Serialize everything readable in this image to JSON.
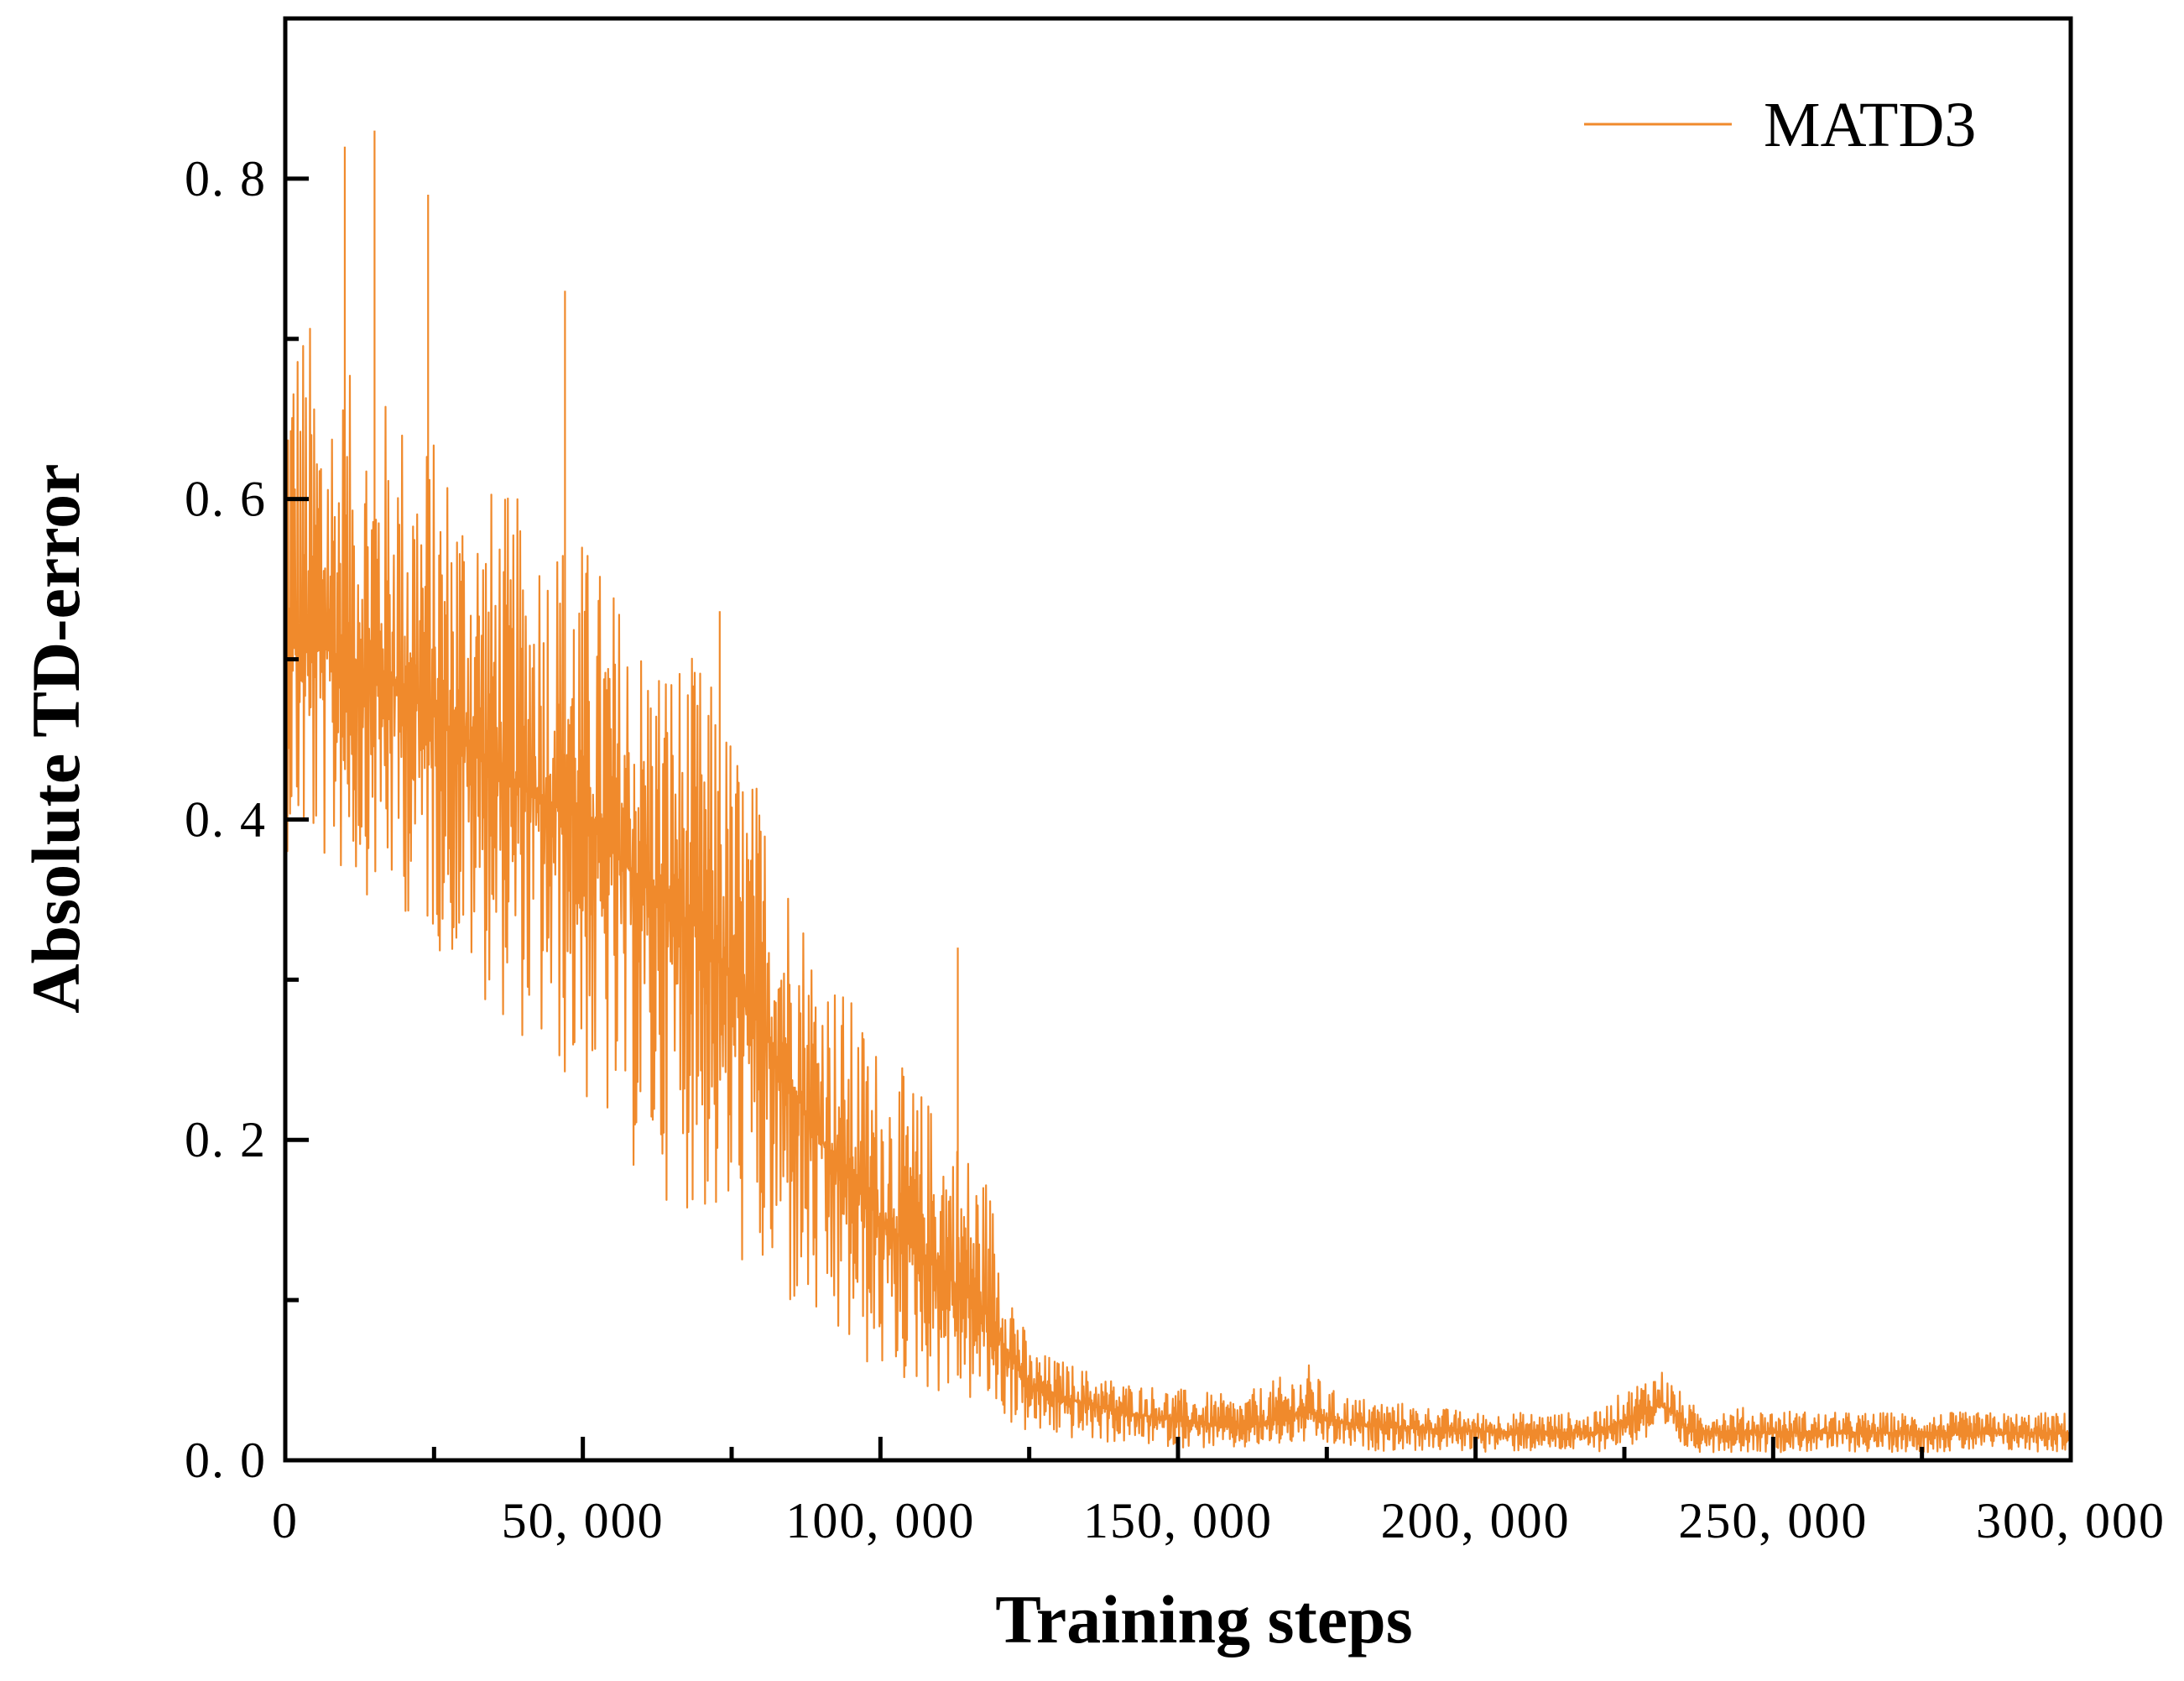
{
  "chart_data": {
    "type": "line",
    "title": "",
    "xlabel": "Training steps",
    "ylabel": "Absolute TD-error",
    "xlim": [
      0,
      300000
    ],
    "ylim": [
      0.0,
      0.9
    ],
    "x_ticks": [
      0,
      50000,
      100000,
      150000,
      200000,
      250000,
      300000
    ],
    "x_tick_labels": [
      "0",
      "50, 000",
      "100, 000",
      "150, 000",
      "200, 000",
      "250, 000",
      "300, 000"
    ],
    "y_ticks": [
      0.0,
      0.2,
      0.4,
      0.6,
      0.8
    ],
    "y_tick_labels": [
      "0. 0",
      "0. 2",
      "0. 4",
      "0. 6",
      "0. 8"
    ],
    "legend": {
      "position": "top-right",
      "entries": [
        "MATD3"
      ]
    },
    "grid": false,
    "series": [
      {
        "name": "MATD3",
        "color": "#f08a2c",
        "description_points": {
          "x": [
            0,
            10000,
            20000,
            30000,
            40000,
            50000,
            60000,
            70000,
            80000,
            90000,
            100000,
            110000,
            118000,
            125000,
            140000,
            160000,
            172000,
            175000,
            180000,
            200000,
            220000,
            231000,
            233000,
            236000,
            260000,
            300000
          ],
          "upper": [
            0.74,
            0.68,
            0.66,
            0.62,
            0.6,
            0.58,
            0.52,
            0.5,
            0.42,
            0.32,
            0.26,
            0.22,
            0.18,
            0.07,
            0.05,
            0.04,
            0.06,
            0.045,
            0.04,
            0.03,
            0.03,
            0.06,
            0.05,
            0.035,
            0.03,
            0.03
          ],
          "center": [
            0.52,
            0.5,
            0.48,
            0.45,
            0.42,
            0.4,
            0.36,
            0.33,
            0.27,
            0.2,
            0.15,
            0.12,
            0.09,
            0.045,
            0.03,
            0.02,
            0.03,
            0.025,
            0.022,
            0.018,
            0.017,
            0.035,
            0.03,
            0.018,
            0.017,
            0.017
          ],
          "lower": [
            0.38,
            0.36,
            0.34,
            0.3,
            0.26,
            0.22,
            0.17,
            0.15,
            0.1,
            0.07,
            0.05,
            0.04,
            0.03,
            0.015,
            0.01,
            0.006,
            0.01,
            0.008,
            0.006,
            0.005,
            0.005,
            0.012,
            0.01,
            0.005,
            0.005,
            0.005
          ]
        },
        "notable_peaks": [
          {
            "x": 15000,
            "y": 0.83
          },
          {
            "x": 10000,
            "y": 0.82
          },
          {
            "x": 24000,
            "y": 0.79
          },
          {
            "x": 47000,
            "y": 0.73
          },
          {
            "x": 73000,
            "y": 0.53
          },
          {
            "x": 113000,
            "y": 0.32
          }
        ]
      }
    ]
  }
}
